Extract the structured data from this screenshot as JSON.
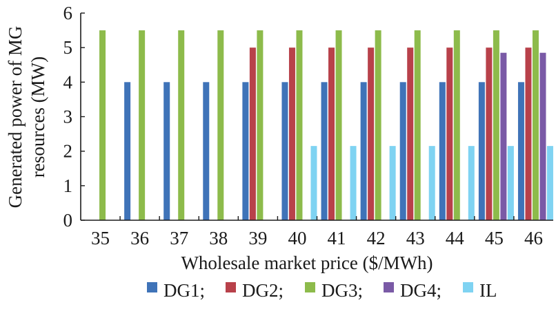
{
  "chart_data": {
    "type": "bar",
    "xlabel": "Wholesale market price ($/MWh)",
    "ylabel_lines": [
      "Generated power of MG",
      "resources (MW)"
    ],
    "categories": [
      "35",
      "36",
      "37",
      "38",
      "39",
      "40",
      "41",
      "42",
      "43",
      "44",
      "45",
      "46"
    ],
    "ylim": [
      0,
      6
    ],
    "yticks": [
      "0",
      "1",
      "2",
      "3",
      "4",
      "5",
      "6"
    ],
    "grid": false,
    "legend_position": "bottom",
    "series": [
      {
        "name": "DG1;",
        "color": "#3f73b8",
        "values": [
          0,
          4,
          4,
          4,
          4,
          4,
          4,
          4,
          4,
          4,
          4,
          4
        ]
      },
      {
        "name": "DG2;",
        "color": "#b8414a",
        "values": [
          0,
          0,
          0,
          0,
          5,
          5,
          5,
          5,
          5,
          5,
          5,
          5
        ]
      },
      {
        "name": "DG3;",
        "color": "#8dbb4b",
        "values": [
          5.5,
          5.5,
          5.5,
          5.5,
          5.5,
          5.5,
          5.5,
          5.5,
          5.5,
          5.5,
          5.5,
          5.5
        ]
      },
      {
        "name": "DG4;",
        "color": "#7a5aa6",
        "values": [
          0,
          0,
          0,
          0,
          0,
          0,
          0,
          0,
          0,
          0,
          4.85,
          4.85
        ]
      },
      {
        "name": "IL",
        "color": "#7fd3f2",
        "values": [
          0,
          0,
          0,
          0,
          0,
          2.15,
          2.15,
          2.15,
          2.15,
          2.15,
          2.15,
          2.15
        ]
      }
    ]
  }
}
